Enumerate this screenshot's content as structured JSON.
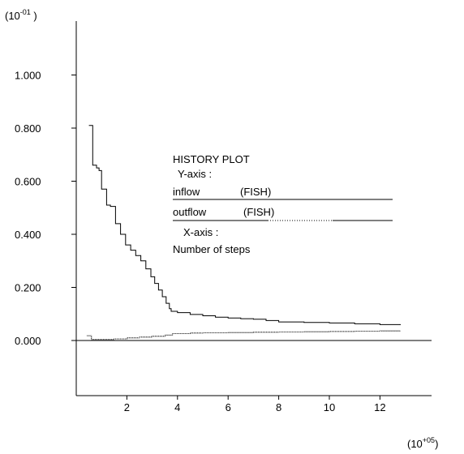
{
  "chart_data": {
    "type": "line",
    "y_exponent_label": {
      "base": "(10",
      "exp": "-01",
      "close": " )"
    },
    "x_exponent_label": {
      "base": "(10",
      "exp": "+05",
      "close": ")"
    },
    "ylim": [
      -0.2,
      1.2
    ],
    "xlim": [
      0,
      13.5
    ],
    "yticks": [
      0.0,
      0.2,
      0.4,
      0.6,
      0.8,
      1.0
    ],
    "ytick_labels": [
      "0.000",
      "0.200",
      "0.400",
      "0.600",
      "0.800",
      "1.000"
    ],
    "xticks": [
      2,
      4,
      6,
      8,
      10,
      12
    ],
    "xtick_labels": [
      "2",
      "4",
      "6",
      "8",
      "10",
      "12"
    ],
    "legend": {
      "title": "HISTORY PLOT",
      "y_axis_heading": "Y-axis :",
      "x_axis_heading": "X-axis :",
      "x_axis_name": "Number of steps"
    },
    "series": [
      {
        "name": "inflow",
        "tag": "(FISH)",
        "style": "solid",
        "x": [
          0.5,
          0.65,
          0.65,
          0.8,
          0.9,
          1.0,
          1.2,
          1.35,
          1.55,
          1.75,
          1.95,
          2.15,
          2.35,
          2.55,
          2.75,
          2.95,
          3.1,
          3.25,
          3.4,
          3.55,
          3.68,
          3.75,
          4.0,
          4.5,
          5.0,
          5.5,
          6.0,
          6.5,
          7.0,
          7.5,
          8.0,
          9.0,
          10.0,
          11.0,
          12.0,
          12.8
        ],
        "y": [
          0.81,
          0.8,
          0.66,
          0.65,
          0.64,
          0.57,
          0.51,
          0.505,
          0.44,
          0.4,
          0.36,
          0.34,
          0.32,
          0.3,
          0.27,
          0.24,
          0.215,
          0.19,
          0.165,
          0.14,
          0.12,
          0.11,
          0.105,
          0.098,
          0.093,
          0.088,
          0.085,
          0.082,
          0.08,
          0.075,
          0.07,
          0.068,
          0.066,
          0.063,
          0.06,
          0.058
        ]
      },
      {
        "name": "outflow",
        "tag": "(FISH)",
        "style": "dotted-mixed",
        "x": [
          0.4,
          0.6,
          0.6,
          1.0,
          1.5,
          2.0,
          2.5,
          3.0,
          3.5,
          3.8,
          4.5,
          5.0,
          6.0,
          7.0,
          8.0,
          9.0,
          10.0,
          11.0,
          12.0,
          12.8
        ],
        "y": [
          0.018,
          0.018,
          0.004,
          0.004,
          0.006,
          0.01,
          0.013,
          0.016,
          0.02,
          0.026,
          0.028,
          0.029,
          0.03,
          0.031,
          0.032,
          0.033,
          0.034,
          0.035,
          0.036,
          0.036
        ]
      }
    ]
  }
}
